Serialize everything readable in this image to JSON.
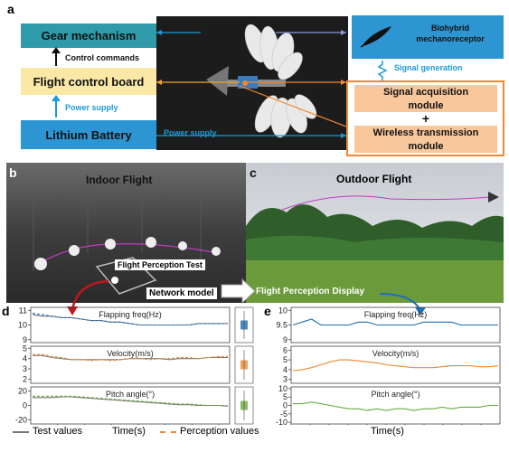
{
  "panel_a": {
    "letter": "a",
    "gear": "Gear mechanism",
    "control_commands": "Control commands",
    "flight_board": "Flight control board",
    "power_supply_left": "Power supply",
    "battery": "Lithium Battery",
    "power_supply_center": "Power supply",
    "mechanoreceptor_line1": "Biohybrid",
    "mechanoreceptor_line2": "mechanoreceptor",
    "signal_generation": "Signal generation",
    "acq_line1": "Signal acquisition",
    "acq_line2": "module",
    "plus": "+",
    "wireless_line1": "Wireless transmission",
    "wireless_line2": "module"
  },
  "panel_b": {
    "letter": "b",
    "title": "Indoor Flight",
    "test_label": "Flight Perception Test"
  },
  "panel_c": {
    "letter": "c",
    "title": "Outdoor Flight"
  },
  "middle": {
    "network_model": "Network model",
    "display": "Flight Perception Display"
  },
  "panel_d": {
    "letter": "d"
  },
  "panel_e": {
    "letter": "e"
  },
  "legend": {
    "test": "Test values",
    "time": "Time(s)",
    "perception": "Perception values"
  },
  "colors": {
    "blue_box": "#2e95d3",
    "teal_box": "#2e9aaa",
    "yellow_box": "#fbe8a6",
    "orange_box": "#f8c79c",
    "orange_border": "#f0892f",
    "freq": "#1f6fb4",
    "velocity": "#f0892f",
    "pitch": "#6aac3c"
  },
  "chart_data": [
    {
      "type": "line",
      "panel": "d",
      "xlabel": "Time(s)",
      "x_ticks": [
        "0.1",
        "0.2",
        "0.3",
        "0.4",
        "0.5",
        "0.6",
        "0.7"
      ],
      "xlim": [
        0,
        0.74
      ],
      "series": [
        {
          "name": "Flapping freq(Hz)",
          "y_ticks": [
            "11",
            "10",
            "9"
          ],
          "ylim": [
            8.8,
            11.2
          ],
          "values": [
            10.7,
            10.6,
            10.6,
            10.5,
            10.5,
            10.4,
            10.3,
            10.3,
            10.2,
            10.2,
            10.1,
            10.0,
            10.0,
            10.0,
            10.0,
            10.0,
            10.0,
            10.1,
            10.1,
            10.1,
            10.1
          ],
          "perception": [
            10.8,
            10.7,
            10.6,
            10.5,
            10.5,
            10.4,
            10.3,
            10.3,
            10.2,
            10.2,
            10.1,
            10.0,
            10.0,
            10.0,
            10.0,
            10.0,
            10.0,
            10.1,
            10.1,
            10.1,
            10.1
          ]
        },
        {
          "name": "Velocity(m/s)",
          "y_ticks": [
            "5",
            "4",
            "3",
            "2"
          ],
          "ylim": [
            1.6,
            5.2
          ],
          "values": [
            4.3,
            4.3,
            4.1,
            4.0,
            3.9,
            3.9,
            3.9,
            3.9,
            3.9,
            3.9,
            4.0,
            4.0,
            4.0,
            4.0,
            3.9,
            4.0,
            4.0,
            4.0,
            4.1,
            4.1,
            4.1
          ],
          "perception": [
            4.4,
            4.4,
            4.2,
            4.1,
            3.9,
            3.9,
            3.8,
            3.9,
            3.8,
            3.9,
            4.0,
            4.0,
            3.9,
            4.0,
            4.0,
            4.1,
            4.1,
            4.0,
            4.1,
            4.2,
            4.2
          ]
        },
        {
          "name": "Pitch angle(°)",
          "y_ticks": [
            "20",
            "0",
            "-20"
          ],
          "ylim": [
            -26,
            26
          ],
          "values": [
            11,
            11,
            11,
            12,
            12,
            11,
            10,
            9,
            8,
            7,
            6,
            5,
            4,
            3,
            2,
            1,
            1,
            0,
            0,
            0,
            -1
          ],
          "perception": [
            13,
            13,
            13,
            13,
            13,
            12,
            11,
            10,
            9,
            8,
            7,
            6,
            5,
            4,
            3,
            2,
            2,
            1,
            0,
            0,
            0
          ]
        }
      ]
    },
    {
      "type": "line",
      "panel": "e",
      "xlabel": "Time(s)",
      "x_ticks": [
        "0",
        "0.2",
        "0.4",
        "0.6",
        "0.8",
        "1",
        "1.2",
        "1.4",
        "1.6",
        "1.8",
        "2"
      ],
      "xlim": [
        0,
        2.2
      ],
      "series": [
        {
          "name": "Flapping freq(Hz)",
          "y_ticks": [
            "10",
            "9.5",
            "9"
          ],
          "ylim": [
            8.9,
            10.1
          ],
          "values": [
            9.5,
            9.6,
            9.7,
            9.5,
            9.5,
            9.5,
            9.5,
            9.6,
            9.6,
            9.5,
            9.5,
            9.5,
            9.5,
            9.5,
            9.6,
            9.6,
            9.6,
            9.6,
            9.5,
            9.5,
            9.5,
            9.5,
            9.5
          ]
        },
        {
          "name": "Velocity(m/s)",
          "y_ticks": [
            "6",
            "5",
            "4",
            "3"
          ],
          "ylim": [
            2.6,
            6.4
          ],
          "values": [
            3.9,
            4.0,
            4.2,
            4.5,
            4.8,
            5.0,
            5.0,
            4.9,
            4.8,
            4.7,
            4.5,
            4.4,
            4.3,
            4.2,
            4.2,
            4.2,
            4.3,
            4.4,
            4.4,
            4.4,
            4.3,
            4.3,
            4.4
          ]
        },
        {
          "name": "Pitch angle(°)",
          "y_ticks": [
            "10",
            "5",
            "0",
            "-5",
            "-10"
          ],
          "ylim": [
            -11,
            11
          ],
          "values": [
            1,
            1,
            2,
            1,
            0,
            -1,
            -2,
            -2,
            -3,
            -2,
            -3,
            -2,
            -2,
            -3,
            -2,
            -2,
            -1,
            -2,
            -1,
            -1,
            -1,
            0,
            0
          ]
        }
      ]
    }
  ]
}
